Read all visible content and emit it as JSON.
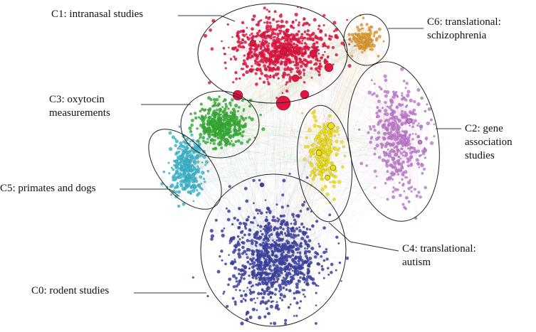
{
  "colors": {
    "c0": "#3a3fa3",
    "c1": "#e3123f",
    "c2": "#c27ad2",
    "c3": "#34b032",
    "c4": "#eedd10",
    "c5": "#38b9d0",
    "c6": "#e39a2c",
    "outline": "#222222",
    "leader": "#333333"
  },
  "clusters": {
    "c0": {
      "label": "C0: rodent studies"
    },
    "c1": {
      "label": "C1: intranasal studies"
    },
    "c2": {
      "label_line1": "C2: gene",
      "label_line2": "association",
      "label_line3": "studies"
    },
    "c3": {
      "label_line1": "C3: oxytocin",
      "label_line2": "measurements"
    },
    "c4": {
      "label_line1": "C4: translational:",
      "label_line2": "autism"
    },
    "c5": {
      "label": "C5: primates and dogs"
    },
    "c6": {
      "label_line1": "C6: translational:",
      "label_line2": "schizophrenia"
    }
  }
}
